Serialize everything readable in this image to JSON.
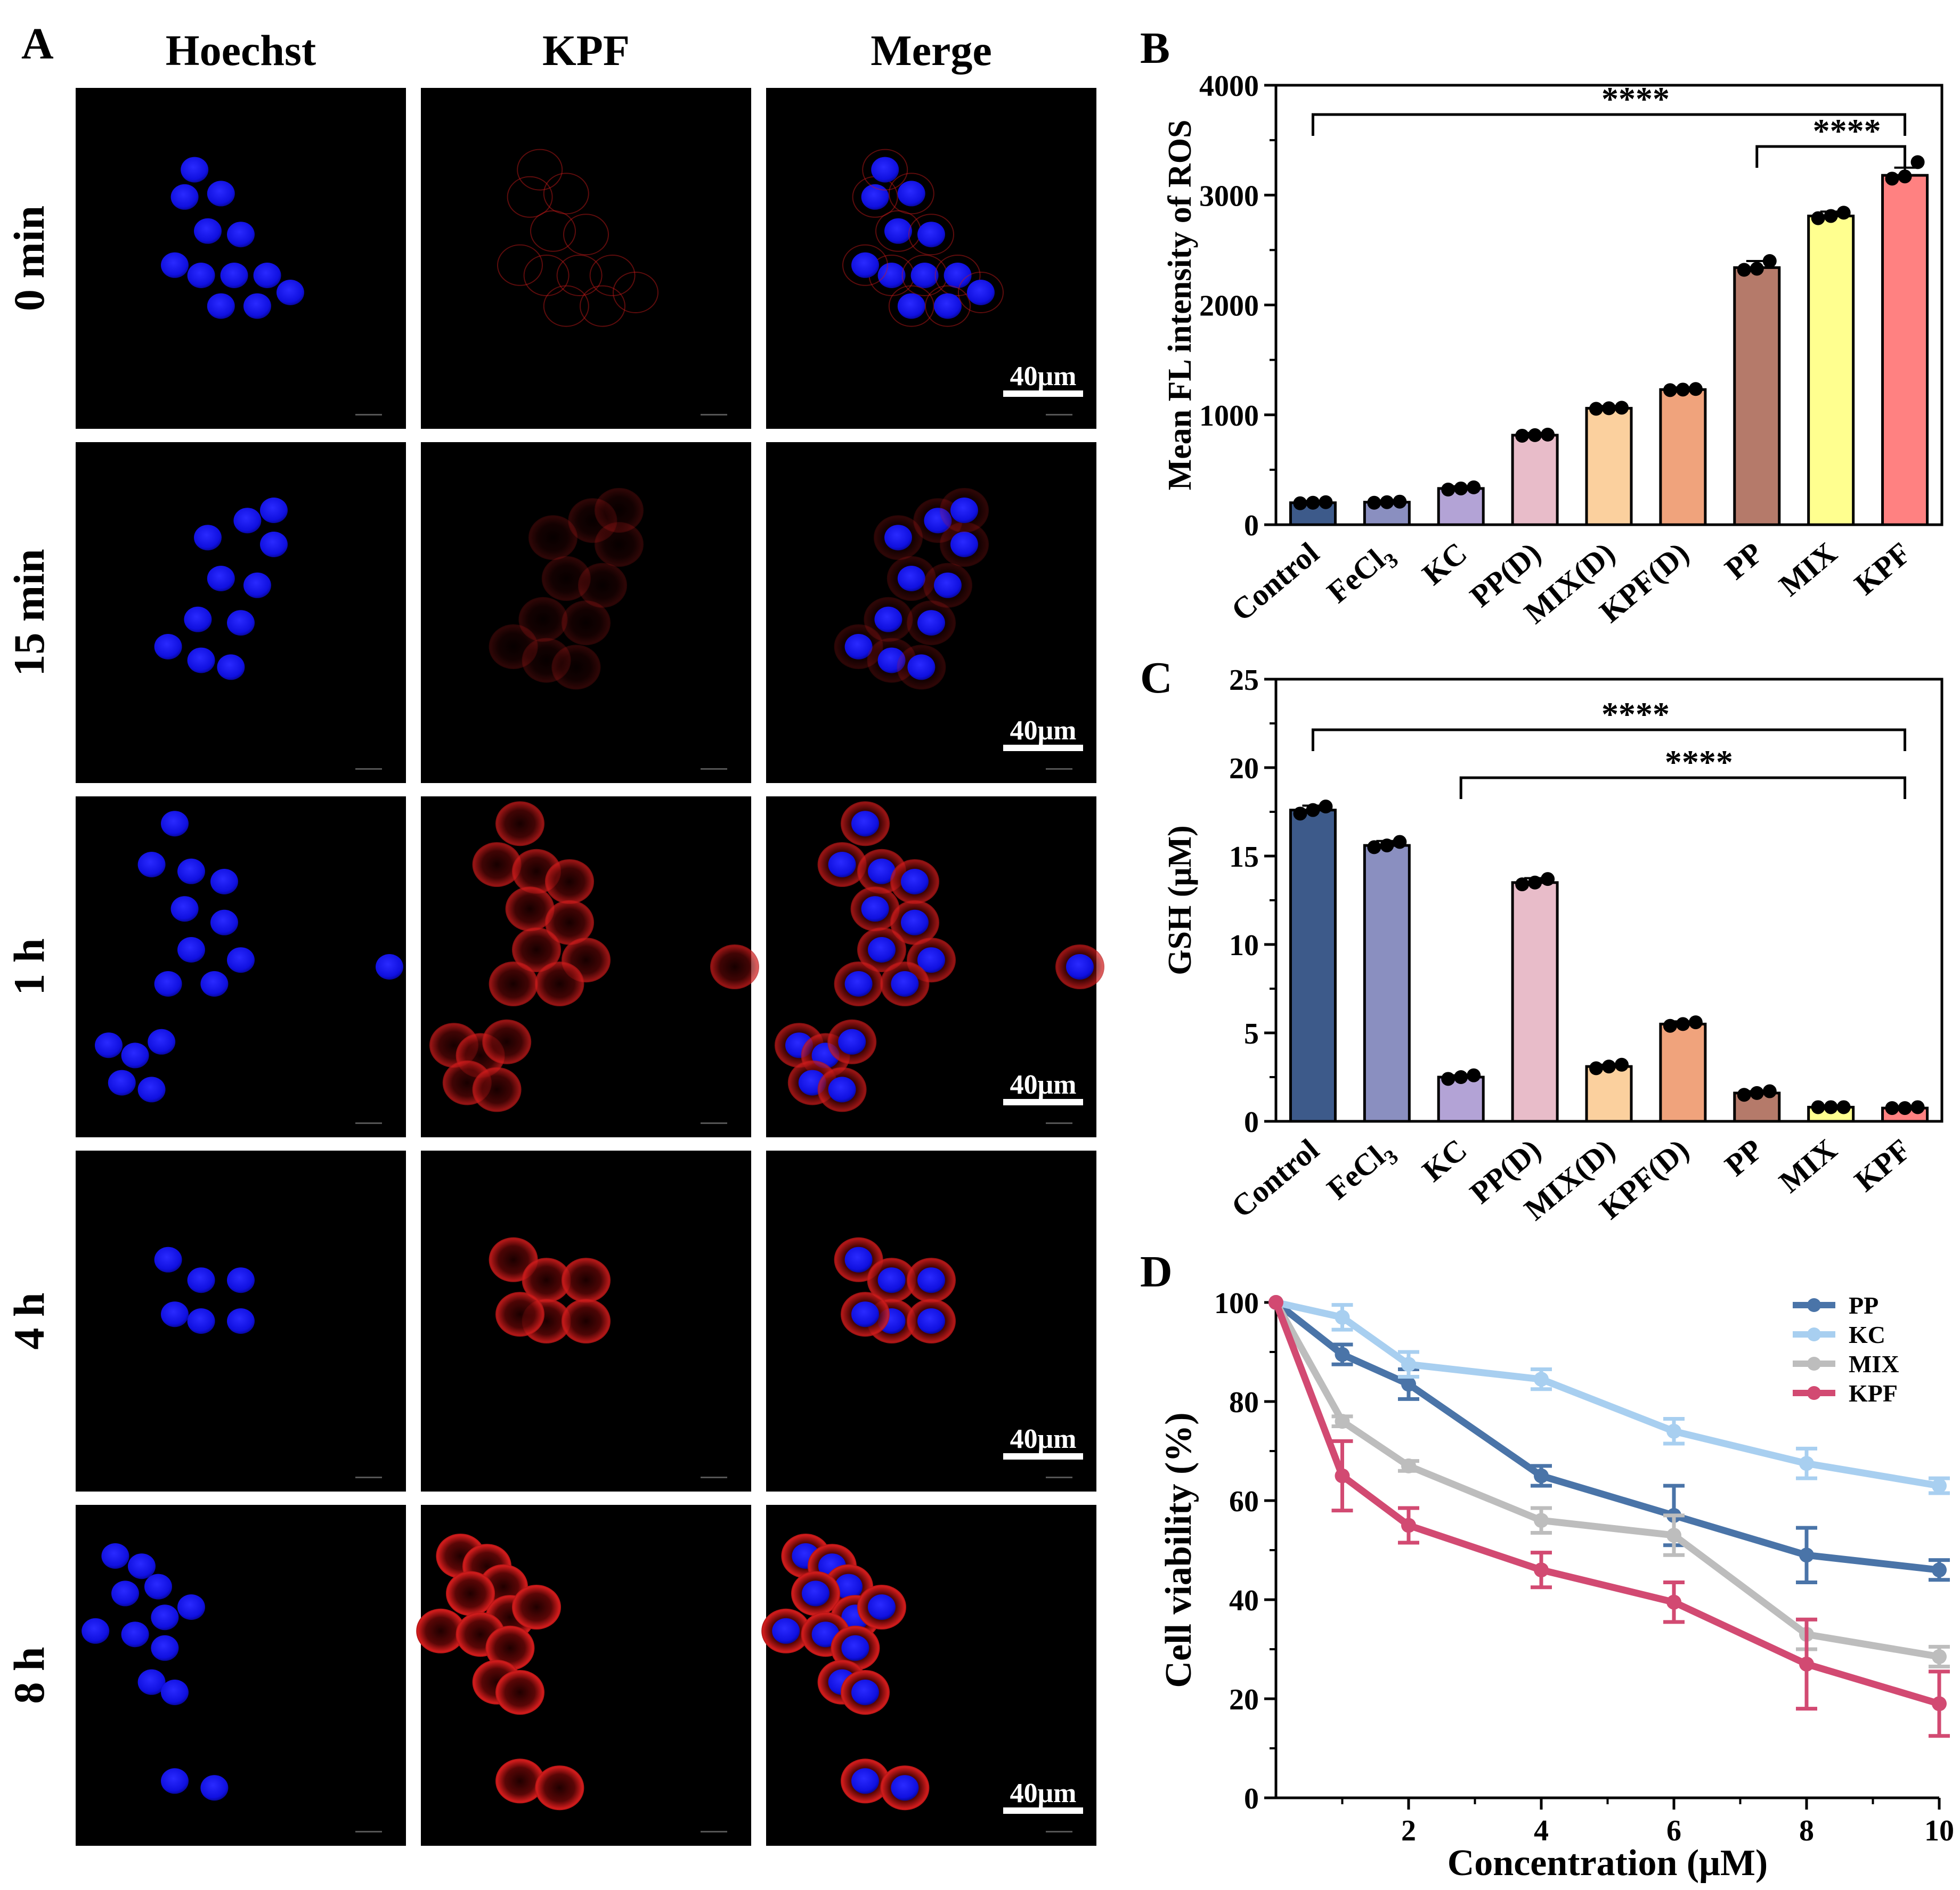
{
  "panel_a": {
    "letter": "A",
    "columns": [
      "Hoechst",
      "KPF",
      "Merge"
    ],
    "rows": [
      "0 min",
      "15 min",
      "1 h",
      "4 h",
      "8 h"
    ],
    "scale_bar_label": "40μm",
    "intensity": {
      "kpf": [
        0.12,
        0.22,
        0.72,
        0.85,
        1.0
      ]
    },
    "colors": {
      "nucleus": "#1414ff",
      "kpf": "#c81a1a",
      "background": "#000000"
    }
  },
  "chart_data": [
    {
      "panel": "B",
      "type": "bar",
      "title": "",
      "ylabel": "Mean FL intensity of ROS",
      "xlabel": "",
      "ylim": [
        0,
        4000
      ],
      "yticks": [
        0,
        1000,
        2000,
        3000,
        4000
      ],
      "categories": [
        "Control",
        "FeCl",
        "KC",
        "PP(D)",
        "MIX(D)",
        "KPF(D)",
        "PP",
        "MIX",
        "KPF"
      ],
      "subscript": {
        "category": "FeCl",
        "sub": "3"
      },
      "values": [
        200,
        205,
        330,
        815,
        1060,
        1230,
        2340,
        2810,
        3180
      ],
      "errors": [
        15,
        15,
        20,
        20,
        20,
        20,
        60,
        40,
        70
      ],
      "points": [
        [
          195,
          200,
          205
        ],
        [
          200,
          205,
          210
        ],
        [
          320,
          330,
          340
        ],
        [
          810,
          815,
          820
        ],
        [
          1055,
          1060,
          1065
        ],
        [
          1225,
          1230,
          1235
        ],
        [
          2320,
          2330,
          2400
        ],
        [
          2790,
          2810,
          2840
        ],
        [
          3150,
          3170,
          3300
        ]
      ],
      "colors": [
        "#3d5a8a",
        "#8a8fc0",
        "#b3a3d6",
        "#e8bcc9",
        "#fbd09e",
        "#f0a37c",
        "#b57a6a",
        "#ffff8f",
        "#ff8181"
      ],
      "significance": [
        {
          "from": 0,
          "to": 8,
          "label": "****"
        },
        {
          "from": 6,
          "to": 8,
          "label": "****"
        }
      ]
    },
    {
      "panel": "C",
      "type": "bar",
      "title": "",
      "ylabel": "GSH (μM)",
      "xlabel": "",
      "ylim": [
        0,
        25
      ],
      "yticks": [
        0,
        5,
        10,
        15,
        20,
        25
      ],
      "categories": [
        "Control",
        "FeCl",
        "KC",
        "PP(D)",
        "MIX(D)",
        "KPF(D)",
        "PP",
        "MIX",
        "KPF"
      ],
      "subscript": {
        "category": "FeCl",
        "sub": "3"
      },
      "values": [
        17.6,
        15.6,
        2.5,
        13.5,
        3.1,
        5.5,
        1.6,
        0.8,
        0.75
      ],
      "errors": [
        0.25,
        0.25,
        0.1,
        0.25,
        0.1,
        0.15,
        0.1,
        0.05,
        0.05
      ],
      "points": [
        [
          17.4,
          17.6,
          17.8
        ],
        [
          15.5,
          15.6,
          15.8
        ],
        [
          2.4,
          2.5,
          2.6
        ],
        [
          13.4,
          13.5,
          13.7
        ],
        [
          3.0,
          3.1,
          3.2
        ],
        [
          5.4,
          5.5,
          5.6
        ],
        [
          1.5,
          1.6,
          1.7
        ],
        [
          0.8,
          0.8,
          0.8
        ],
        [
          0.75,
          0.75,
          0.8
        ]
      ],
      "colors": [
        "#3d5a8a",
        "#8a8fc0",
        "#b3a3d6",
        "#e8bcc9",
        "#fbd09e",
        "#f0a37c",
        "#b57a6a",
        "#ffff8f",
        "#ff8181"
      ],
      "significance": [
        {
          "from": 0,
          "to": 8,
          "label": "****"
        },
        {
          "from": 2,
          "to": 8,
          "label": "****"
        }
      ]
    },
    {
      "panel": "D",
      "type": "line",
      "title": "",
      "xlabel": "Concentration (μM)",
      "ylabel": "Cell viability (%)",
      "xlim": [
        0,
        10
      ],
      "ylim": [
        0,
        100
      ],
      "xticks": [
        2,
        4,
        6,
        8,
        10
      ],
      "yticks": [
        0,
        20,
        40,
        60,
        80,
        100
      ],
      "x": [
        0,
        1,
        2,
        4,
        6,
        8,
        10
      ],
      "series": [
        {
          "name": "PP",
          "color": "#4a74a8",
          "values": [
            100,
            89.5,
            83.5,
            65,
            57,
            49,
            46
          ],
          "errors": [
            0,
            2,
            3,
            2,
            6,
            5.5,
            2
          ]
        },
        {
          "name": "KC",
          "color": "#a8cff0",
          "values": [
            100,
            97,
            87.5,
            84.5,
            74,
            67.5,
            63
          ],
          "errors": [
            0,
            2.5,
            2.5,
            2,
            2.5,
            3,
            1.5
          ]
        },
        {
          "name": "MIX",
          "color": "#bdbdbd",
          "values": [
            100,
            76,
            67,
            56,
            53,
            33,
            28.5
          ],
          "errors": [
            0,
            1,
            1,
            2.5,
            4,
            3,
            2
          ]
        },
        {
          "name": "KPF",
          "color": "#d24a72",
          "values": [
            100,
            65,
            55,
            46,
            39.5,
            27,
            19
          ],
          "errors": [
            0,
            7,
            3.5,
            3.5,
            4,
            9,
            6.5
          ]
        }
      ]
    }
  ]
}
